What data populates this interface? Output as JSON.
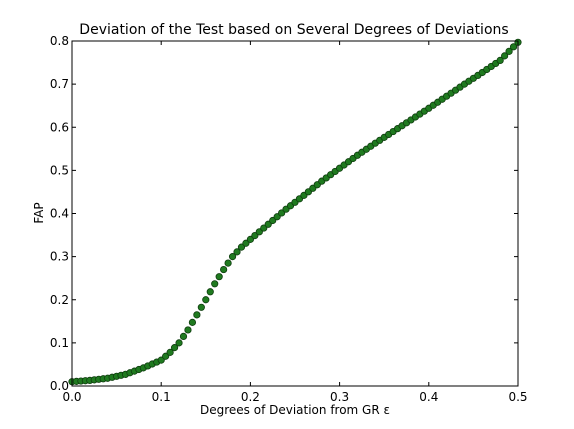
{
  "chart_data": {
    "type": "scatter",
    "title": "Deviation of the Test based on Several Degrees of Deviations",
    "xlabel": "Degrees of Deviation from GR ε",
    "ylabel": "FAP",
    "xlim": [
      0.0,
      0.5
    ],
    "ylim": [
      0.0,
      0.8
    ],
    "xticks": [
      "0.0",
      "0.1",
      "0.2",
      "0.3",
      "0.4",
      "0.5"
    ],
    "yticks": [
      "0.0",
      "0.1",
      "0.2",
      "0.3",
      "0.4",
      "0.5",
      "0.6",
      "0.7",
      "0.8"
    ],
    "grid": false,
    "marker_color": "#1f7a1f",
    "marker_edge": "#0f3d0f",
    "curve": [
      [
        0.0,
        0.01
      ],
      [
        0.02,
        0.013
      ],
      [
        0.04,
        0.018
      ],
      [
        0.06,
        0.027
      ],
      [
        0.08,
        0.042
      ],
      [
        0.1,
        0.06
      ],
      [
        0.11,
        0.078
      ],
      [
        0.12,
        0.1
      ],
      [
        0.13,
        0.13
      ],
      [
        0.14,
        0.165
      ],
      [
        0.15,
        0.2
      ],
      [
        0.16,
        0.237
      ],
      [
        0.17,
        0.27
      ],
      [
        0.18,
        0.3
      ],
      [
        0.19,
        0.322
      ],
      [
        0.2,
        0.34
      ],
      [
        0.22,
        0.375
      ],
      [
        0.24,
        0.41
      ],
      [
        0.26,
        0.442
      ],
      [
        0.28,
        0.475
      ],
      [
        0.3,
        0.505
      ],
      [
        0.32,
        0.535
      ],
      [
        0.34,
        0.563
      ],
      [
        0.36,
        0.59
      ],
      [
        0.38,
        0.617
      ],
      [
        0.4,
        0.644
      ],
      [
        0.42,
        0.672
      ],
      [
        0.44,
        0.7
      ],
      [
        0.46,
        0.727
      ],
      [
        0.48,
        0.755
      ],
      [
        0.5,
        0.797
      ]
    ],
    "n_points": 101
  }
}
